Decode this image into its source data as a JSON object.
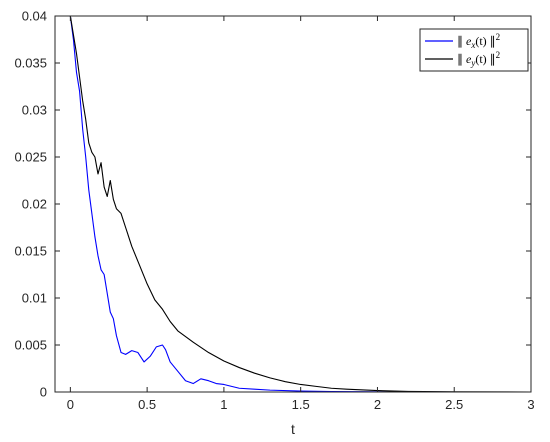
{
  "chart_data": {
    "type": "line",
    "title": "",
    "xlabel": "t",
    "ylabel": "",
    "xlim": [
      -0.1,
      3
    ],
    "ylim": [
      0,
      0.04
    ],
    "x_ticks": [
      0,
      0.5,
      1,
      1.5,
      2,
      2.5,
      3
    ],
    "x_tick_labels": [
      "0",
      "0.5",
      "1",
      "1.5",
      "2",
      "2.5",
      "3"
    ],
    "y_ticks": [
      0,
      0.005,
      0.01,
      0.015,
      0.02,
      0.025,
      0.03,
      0.035,
      0.04
    ],
    "y_tick_labels": [
      "0",
      "0.005",
      "0.01",
      "0.015",
      "0.02",
      "0.025",
      "0.03",
      "0.035",
      "0.04"
    ],
    "grid": false,
    "legend_position": "top-right",
    "series": [
      {
        "name": "∥ e_x(t) ∥²",
        "legend_base": "e",
        "legend_sub": "x",
        "color": "#0000ff",
        "x": [
          0,
          0.02,
          0.04,
          0.06,
          0.08,
          0.1,
          0.12,
          0.14,
          0.16,
          0.18,
          0.2,
          0.22,
          0.24,
          0.26,
          0.28,
          0.3,
          0.33,
          0.36,
          0.4,
          0.44,
          0.48,
          0.52,
          0.56,
          0.6,
          0.62,
          0.65,
          0.7,
          0.75,
          0.8,
          0.85,
          0.9,
          0.95,
          1,
          1.05,
          1.1,
          1.2,
          1.3,
          1.5,
          1.7,
          2,
          2.5,
          3
        ],
        "y": [
          0.04,
          0.0375,
          0.034,
          0.032,
          0.028,
          0.025,
          0.0215,
          0.019,
          0.0165,
          0.0145,
          0.013,
          0.0125,
          0.0105,
          0.0085,
          0.0078,
          0.006,
          0.0042,
          0.004,
          0.0044,
          0.0042,
          0.0032,
          0.0038,
          0.0048,
          0.005,
          0.0045,
          0.0032,
          0.0022,
          0.0012,
          0.0009,
          0.0014,
          0.0012,
          0.0009,
          0.0008,
          0.0006,
          0.0004,
          0.0003,
          0.0002,
          0.0001,
          5e-05,
          2e-05,
          0.0,
          0.0
        ]
      },
      {
        "name": "∥ e_y(t) ∥²",
        "legend_base": "e",
        "legend_sub": "y",
        "color": "#000000",
        "x": [
          0,
          0.02,
          0.04,
          0.06,
          0.08,
          0.1,
          0.12,
          0.14,
          0.16,
          0.18,
          0.2,
          0.22,
          0.24,
          0.26,
          0.28,
          0.3,
          0.33,
          0.36,
          0.4,
          0.45,
          0.5,
          0.55,
          0.6,
          0.65,
          0.7,
          0.8,
          0.9,
          1,
          1.1,
          1.2,
          1.3,
          1.4,
          1.5,
          1.6,
          1.7,
          1.8,
          2,
          2.2,
          2.5,
          3
        ],
        "y": [
          0.04,
          0.038,
          0.036,
          0.0335,
          0.031,
          0.029,
          0.0265,
          0.0255,
          0.025,
          0.0232,
          0.0244,
          0.0218,
          0.0208,
          0.0225,
          0.0205,
          0.0195,
          0.019,
          0.0175,
          0.0155,
          0.0135,
          0.0115,
          0.0098,
          0.0088,
          0.0075,
          0.0065,
          0.0053,
          0.0042,
          0.0033,
          0.0026,
          0.002,
          0.0015,
          0.0011,
          0.0008,
          0.0006,
          0.0004,
          0.0003,
          0.00015,
          6e-05,
          2e-05,
          0.0
        ]
      }
    ]
  }
}
